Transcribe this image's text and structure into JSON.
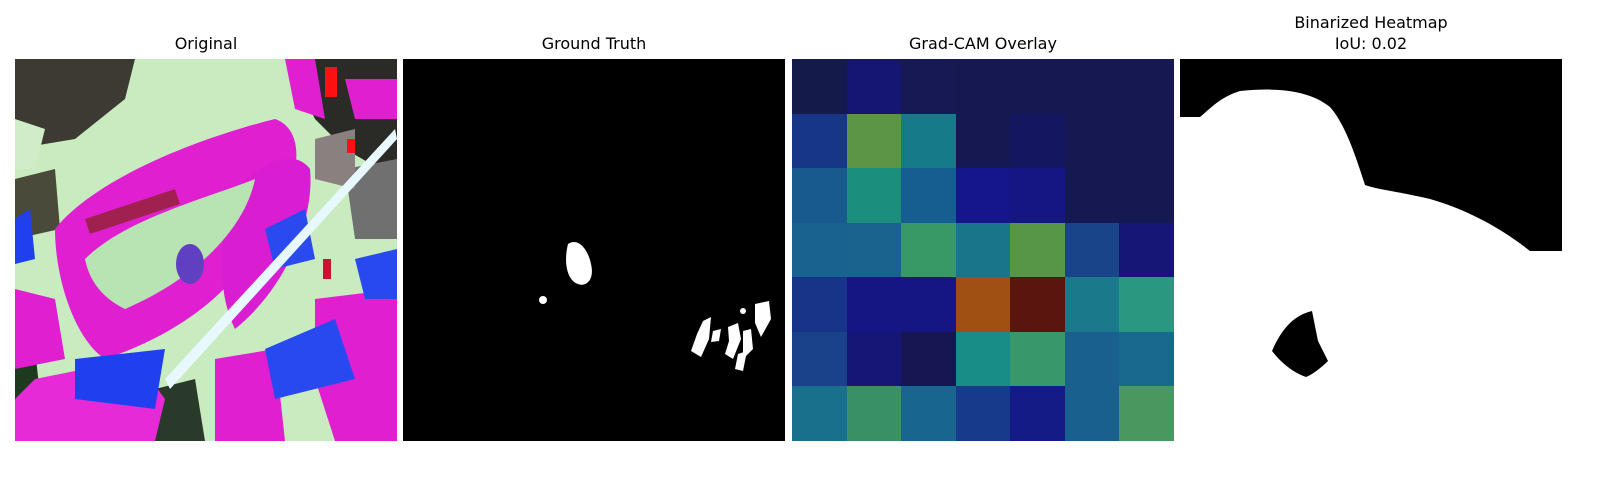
{
  "panels": [
    {
      "title": "Original"
    },
    {
      "title": "Ground Truth"
    },
    {
      "title": "Grad-CAM Overlay"
    },
    {
      "title": "Binarized Heatmap",
      "subtitle": "IoU: 0.02"
    }
  ],
  "colors": {
    "background": "#ffffff",
    "mask_on": "#ffffff",
    "mask_off": "#000000"
  },
  "gradcam_grid": [
    [
      "#141a4a",
      "#151673",
      "#161953",
      "#161852",
      "#161852",
      "#161852",
      "#161852"
    ],
    [
      "#183688",
      "#5a9646",
      "#177a89",
      "#161852",
      "#151660",
      "#161852",
      "#161852"
    ],
    [
      "#185a8e",
      "#1c8e7e",
      "#175e90",
      "#15168a",
      "#151683",
      "#161852",
      "#161852"
    ],
    [
      "#186290",
      "#18648f",
      "#389866",
      "#18758a",
      "#579646",
      "#19448a",
      "#151675"
    ],
    [
      "#183488",
      "#151683",
      "#151683",
      "#a05012",
      "#5a160e",
      "#1a798a",
      "#2a9880"
    ],
    [
      "#19428a",
      "#151675",
      "#151652",
      "#188c86",
      "#38986c",
      "#19608e",
      "#19688e"
    ],
    [
      "#19708c",
      "#3a9066",
      "#186690",
      "#183a8a",
      "#151b86",
      "#19608e",
      "#4a9860"
    ]
  ]
}
